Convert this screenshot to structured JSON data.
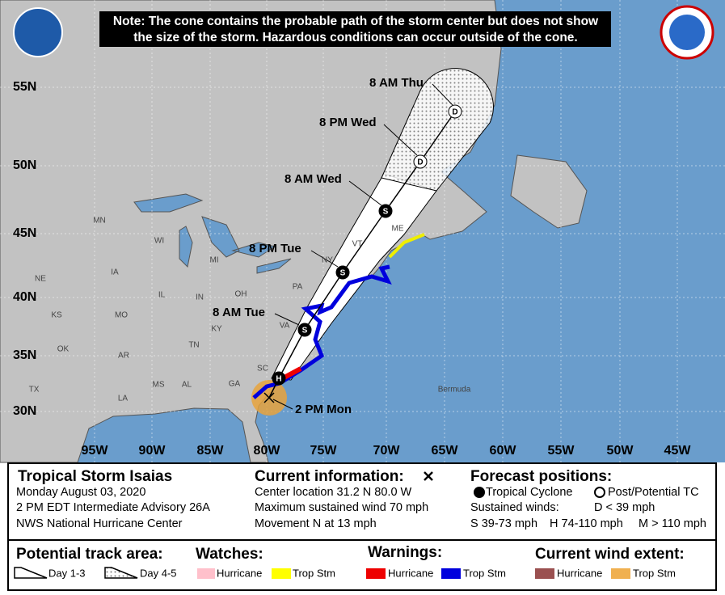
{
  "note": [
    "Note: The cone contains the probable path of the storm center but does not show",
    "the size of the storm. Hazardous conditions can occur outside of the cone."
  ],
  "map": {
    "latitude_labels": [
      "55N",
      "50N",
      "45N",
      "40N",
      "35N",
      "30N"
    ],
    "longitude_labels": [
      "95W",
      "90W",
      "85W",
      "80W",
      "75W",
      "70W",
      "65W",
      "60W",
      "55W",
      "50W",
      "45W"
    ],
    "state_labels": [
      "MN",
      "WI",
      "MI",
      "NE",
      "IA",
      "IL",
      "IN",
      "OH",
      "PA",
      "KS",
      "MO",
      "KY",
      "VA",
      "OK",
      "AR",
      "TN",
      "SC",
      "MS",
      "AL",
      "GA",
      "TX",
      "LA",
      "VT",
      "ME",
      "NY"
    ],
    "place_labels": [
      "Bermuda"
    ],
    "forecast_labels": [
      "8 AM Thu",
      "8 PM Wed",
      "8 AM Wed",
      "8 PM Tue",
      "8 AM Tue",
      "2 PM Mon"
    ],
    "marker_letters": [
      "D",
      "D",
      "S",
      "S",
      "S",
      "H"
    ]
  },
  "info": {
    "storm_name": "Tropical Storm Isaias",
    "date": "Monday August 03, 2020",
    "advisory": "2 PM EDT Intermediate Advisory 26A",
    "center": "NWS National Hurricane Center"
  },
  "current": {
    "heading": "Current information:",
    "location": "Center location 31.2 N 80.0 W",
    "wind": "Maximum sustained wind 70 mph",
    "movement": "Movement N at 13 mph"
  },
  "forecast": {
    "heading": "Forecast positions:",
    "tropical": "Tropical Cyclone",
    "post": "Post/Potential TC",
    "winds_heading": "Sustained winds:",
    "d": "D < 39 mph",
    "s": "S 39-73 mph",
    "h": "H 74-110 mph",
    "m": "M > 110 mph"
  },
  "legend": {
    "track_heading": "Potential track area:",
    "day13": "Day 1-3",
    "day45": "Day 4-5",
    "watches_heading": "Watches:",
    "watch_hurricane": "Hurricane",
    "watch_tropical": "Trop Stm",
    "warnings_heading": "Warnings:",
    "warning_hurricane": "Hurricane",
    "warning_tropical": "Trop Stm",
    "wind_heading": "Current wind extent:",
    "wind_hurricane": "Hurricane",
    "wind_tropical": "Trop Stm"
  }
}
